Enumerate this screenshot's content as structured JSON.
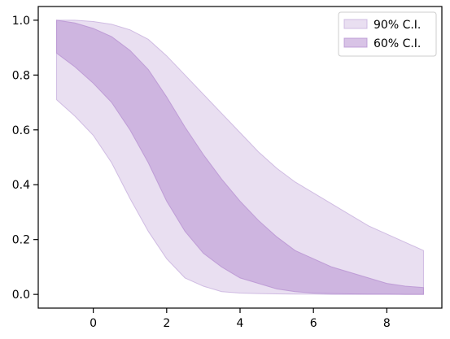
{
  "chart_data": {
    "type": "area",
    "title": "",
    "xlabel": "",
    "ylabel": "",
    "xlim": [
      -1.5,
      9.5
    ],
    "ylim": [
      -0.05,
      1.05
    ],
    "xticks": [
      {
        "value": 0,
        "label": "0"
      },
      {
        "value": 2,
        "label": "2"
      },
      {
        "value": 4,
        "label": "4"
      },
      {
        "value": 6,
        "label": "6"
      },
      {
        "value": 8,
        "label": "8"
      }
    ],
    "yticks": [
      {
        "value": 0.0,
        "label": "0.0"
      },
      {
        "value": 0.2,
        "label": "0.2"
      },
      {
        "value": 0.4,
        "label": "0.4"
      },
      {
        "value": 0.6,
        "label": "0.6"
      },
      {
        "value": 0.8,
        "label": "0.8"
      },
      {
        "value": 1.0,
        "label": "1.0"
      }
    ],
    "grid": false,
    "legend_position": "top-right",
    "x": [
      -1,
      -0.5,
      0,
      0.5,
      1,
      1.5,
      2,
      2.5,
      3,
      3.5,
      4,
      4.5,
      5,
      5.5,
      6,
      6.5,
      7,
      7.5,
      8,
      8.5,
      9
    ],
    "series": [
      {
        "name": "90% C.I.",
        "color": "#c7afdd",
        "opacity": 0.4,
        "lower": [
          0.71,
          0.65,
          0.58,
          0.48,
          0.35,
          0.23,
          0.13,
          0.06,
          0.03,
          0.01,
          0.005,
          0.003,
          0.002,
          0.001,
          0.001,
          0.0,
          0.0,
          0.0,
          0.0,
          0.0,
          0.0
        ],
        "upper": [
          1.0,
          1.0,
          0.995,
          0.985,
          0.965,
          0.93,
          0.87,
          0.8,
          0.73,
          0.66,
          0.59,
          0.52,
          0.46,
          0.41,
          0.37,
          0.33,
          0.29,
          0.25,
          0.22,
          0.19,
          0.16
        ]
      },
      {
        "name": "60% C.I.",
        "color": "#b892d2",
        "opacity": 0.55,
        "lower": [
          0.88,
          0.83,
          0.77,
          0.7,
          0.6,
          0.48,
          0.34,
          0.23,
          0.15,
          0.1,
          0.06,
          0.04,
          0.02,
          0.01,
          0.005,
          0.003,
          0.002,
          0.001,
          0.001,
          0.0,
          0.0
        ],
        "upper": [
          1.0,
          0.99,
          0.97,
          0.94,
          0.89,
          0.82,
          0.72,
          0.61,
          0.51,
          0.42,
          0.34,
          0.27,
          0.21,
          0.16,
          0.13,
          0.1,
          0.08,
          0.06,
          0.04,
          0.03,
          0.025
        ]
      }
    ]
  }
}
